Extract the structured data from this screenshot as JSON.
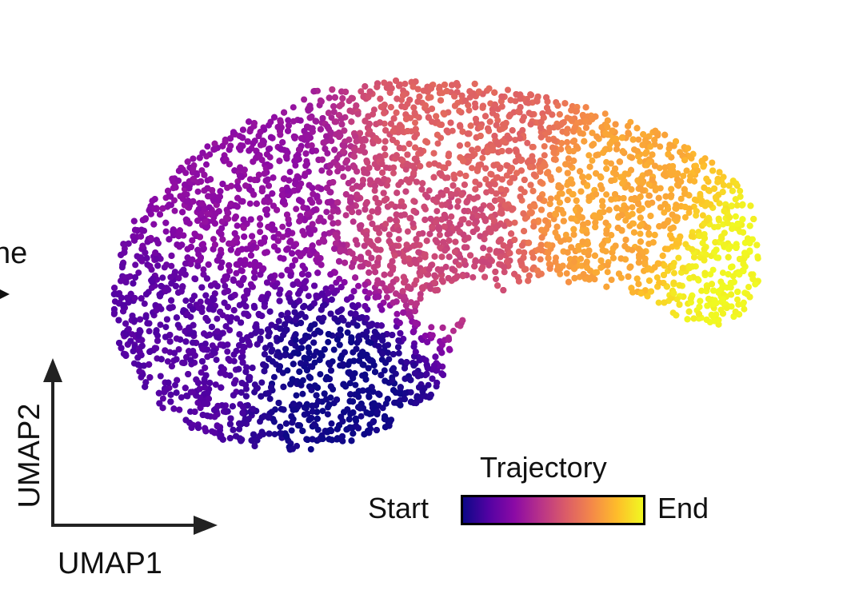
{
  "edge_text": "ne",
  "chart_data": {
    "type": "scatter",
    "title": "",
    "xlabel": "UMAP1",
    "ylabel": "UMAP2",
    "axes_ticks": false,
    "grid": false,
    "color_variable": "Trajectory",
    "colorbar": {
      "title": "Trajectory",
      "min_label": "Start",
      "max_label": "End",
      "colormap": "plasma",
      "stops": [
        "#0d0887",
        "#5302a3",
        "#8b0aa5",
        "#b83289",
        "#db5c68",
        "#f48849",
        "#febd2a",
        "#f0f921"
      ]
    },
    "point_density": "approx. 9000 cells",
    "regions": [
      {
        "trajectory": 0.0,
        "umap1": 4.2,
        "umap2": 2.8
      },
      {
        "trajectory": 0.15,
        "umap1": 1.6,
        "umap2": 3.3
      },
      {
        "trajectory": 0.3,
        "umap1": 2.8,
        "umap2": 6.9
      },
      {
        "trajectory": 0.5,
        "umap1": 5.8,
        "umap2": 6.0
      },
      {
        "trajectory": 0.6,
        "umap1": 6.5,
        "umap2": 8.1
      },
      {
        "trajectory": 0.8,
        "umap1": 8.8,
        "umap2": 6.5
      },
      {
        "trajectory": 1.0,
        "umap1": 11.0,
        "umap2": 5.0
      }
    ]
  }
}
